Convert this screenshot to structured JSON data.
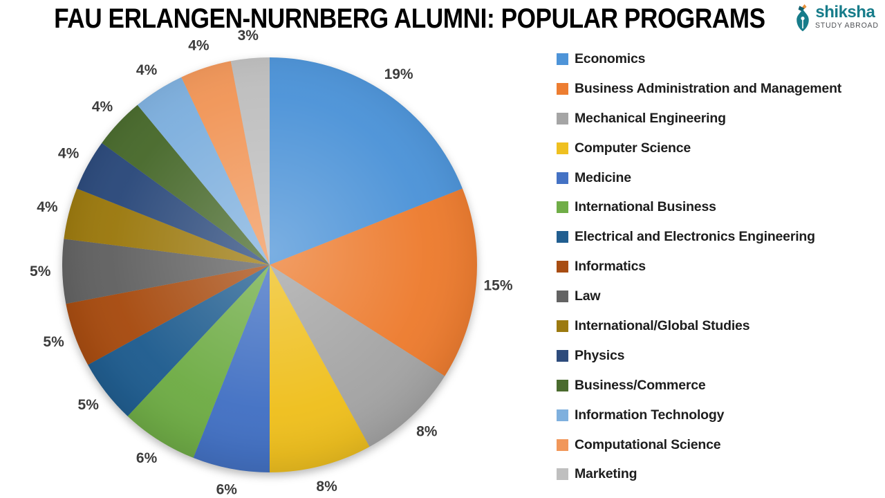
{
  "title": "FAU ERLANGEN-NURNBERG ALUMNI: POPULAR PROGRAMS",
  "logo": {
    "brand": "shiksha",
    "tagline": "STUDY ABROAD",
    "brand_color": "#177C8A",
    "tagline_color": "#4F5155"
  },
  "chart_data": {
    "type": "pie",
    "title": "FAU ERLANGEN-NURNBERG ALUMNI: POPULAR PROGRAMS",
    "unit": "%",
    "start_angle_deg": 0,
    "direction": "clockwise",
    "legend_position": "right",
    "data_label_style": "outside-end-percent",
    "slices": [
      {
        "label": "Economics",
        "value": 19,
        "color": "#4E94D8"
      },
      {
        "label": "Business Administration and Management",
        "value": 15,
        "color": "#ED7D31"
      },
      {
        "label": "Mechanical Engineering",
        "value": 8,
        "color": "#A5A5A5"
      },
      {
        "label": "Computer Science",
        "value": 8,
        "color": "#EFC020"
      },
      {
        "label": "Medicine",
        "value": 6,
        "color": "#4472C4"
      },
      {
        "label": "International Business",
        "value": 6,
        "color": "#70AD47"
      },
      {
        "label": "Electrical and Electronics Engineering",
        "value": 5,
        "color": "#215E90"
      },
      {
        "label": "Informatics",
        "value": 5,
        "color": "#A84D12"
      },
      {
        "label": "Law",
        "value": 5,
        "color": "#636363"
      },
      {
        "label": "International/Global Studies",
        "value": 4,
        "color": "#9C7A10"
      },
      {
        "label": "Physics",
        "value": 4,
        "color": "#2D4B7C"
      },
      {
        "label": "Business/Commerce",
        "value": 4,
        "color": "#4A6B2E"
      },
      {
        "label": "Information Technology",
        "value": 4,
        "color": "#7FB0DE"
      },
      {
        "label": "Computational Science",
        "value": 4,
        "color": "#F1975A"
      },
      {
        "label": "Marketing",
        "value": 3,
        "color": "#BFBFBF"
      }
    ]
  }
}
